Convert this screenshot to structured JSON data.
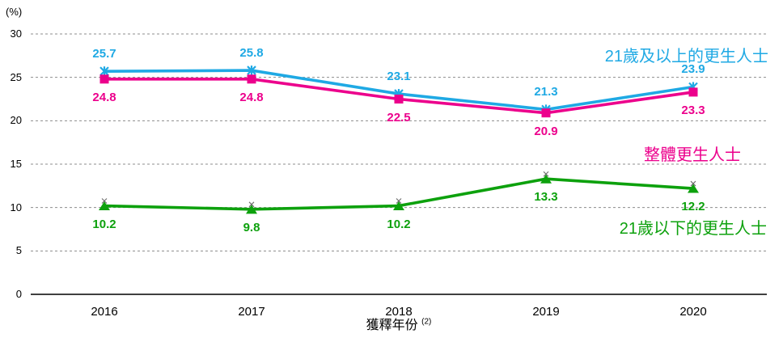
{
  "chart": {
    "y_unit": "(%)",
    "x_axis_title": "獲釋年份",
    "x_axis_title_note": "(2)"
  },
  "chart_data": {
    "type": "line",
    "categories": [
      "2016",
      "2017",
      "2018",
      "2019",
      "2020"
    ],
    "series": [
      {
        "name": "21歲及以上的更生人士",
        "values": [
          25.7,
          25.8,
          23.1,
          21.3,
          23.9
        ],
        "color": "#1FA9E4",
        "marker": "star",
        "label_position": "above"
      },
      {
        "name": "整體更生人士",
        "values": [
          24.8,
          24.8,
          22.5,
          20.9,
          23.3
        ],
        "color": "#EC008C",
        "marker": "square",
        "label_position": "below"
      },
      {
        "name": "21歲以下的更生人士",
        "values": [
          10.2,
          9.8,
          10.2,
          13.3,
          12.2
        ],
        "color": "#0DA10D",
        "marker": "triangle",
        "label_position": "below"
      }
    ],
    "title": "",
    "xlabel": "獲釋年份 (2)",
    "ylabel": "(%)",
    "ylim": [
      0,
      30
    ],
    "y_ticks": [
      0,
      5,
      10,
      15,
      20,
      25,
      30
    ],
    "grid": "horizontal-dashed",
    "grid_color": "#8C8C8C",
    "axis_line_color": "#000000",
    "legend_position": "right-inline-annotations"
  }
}
